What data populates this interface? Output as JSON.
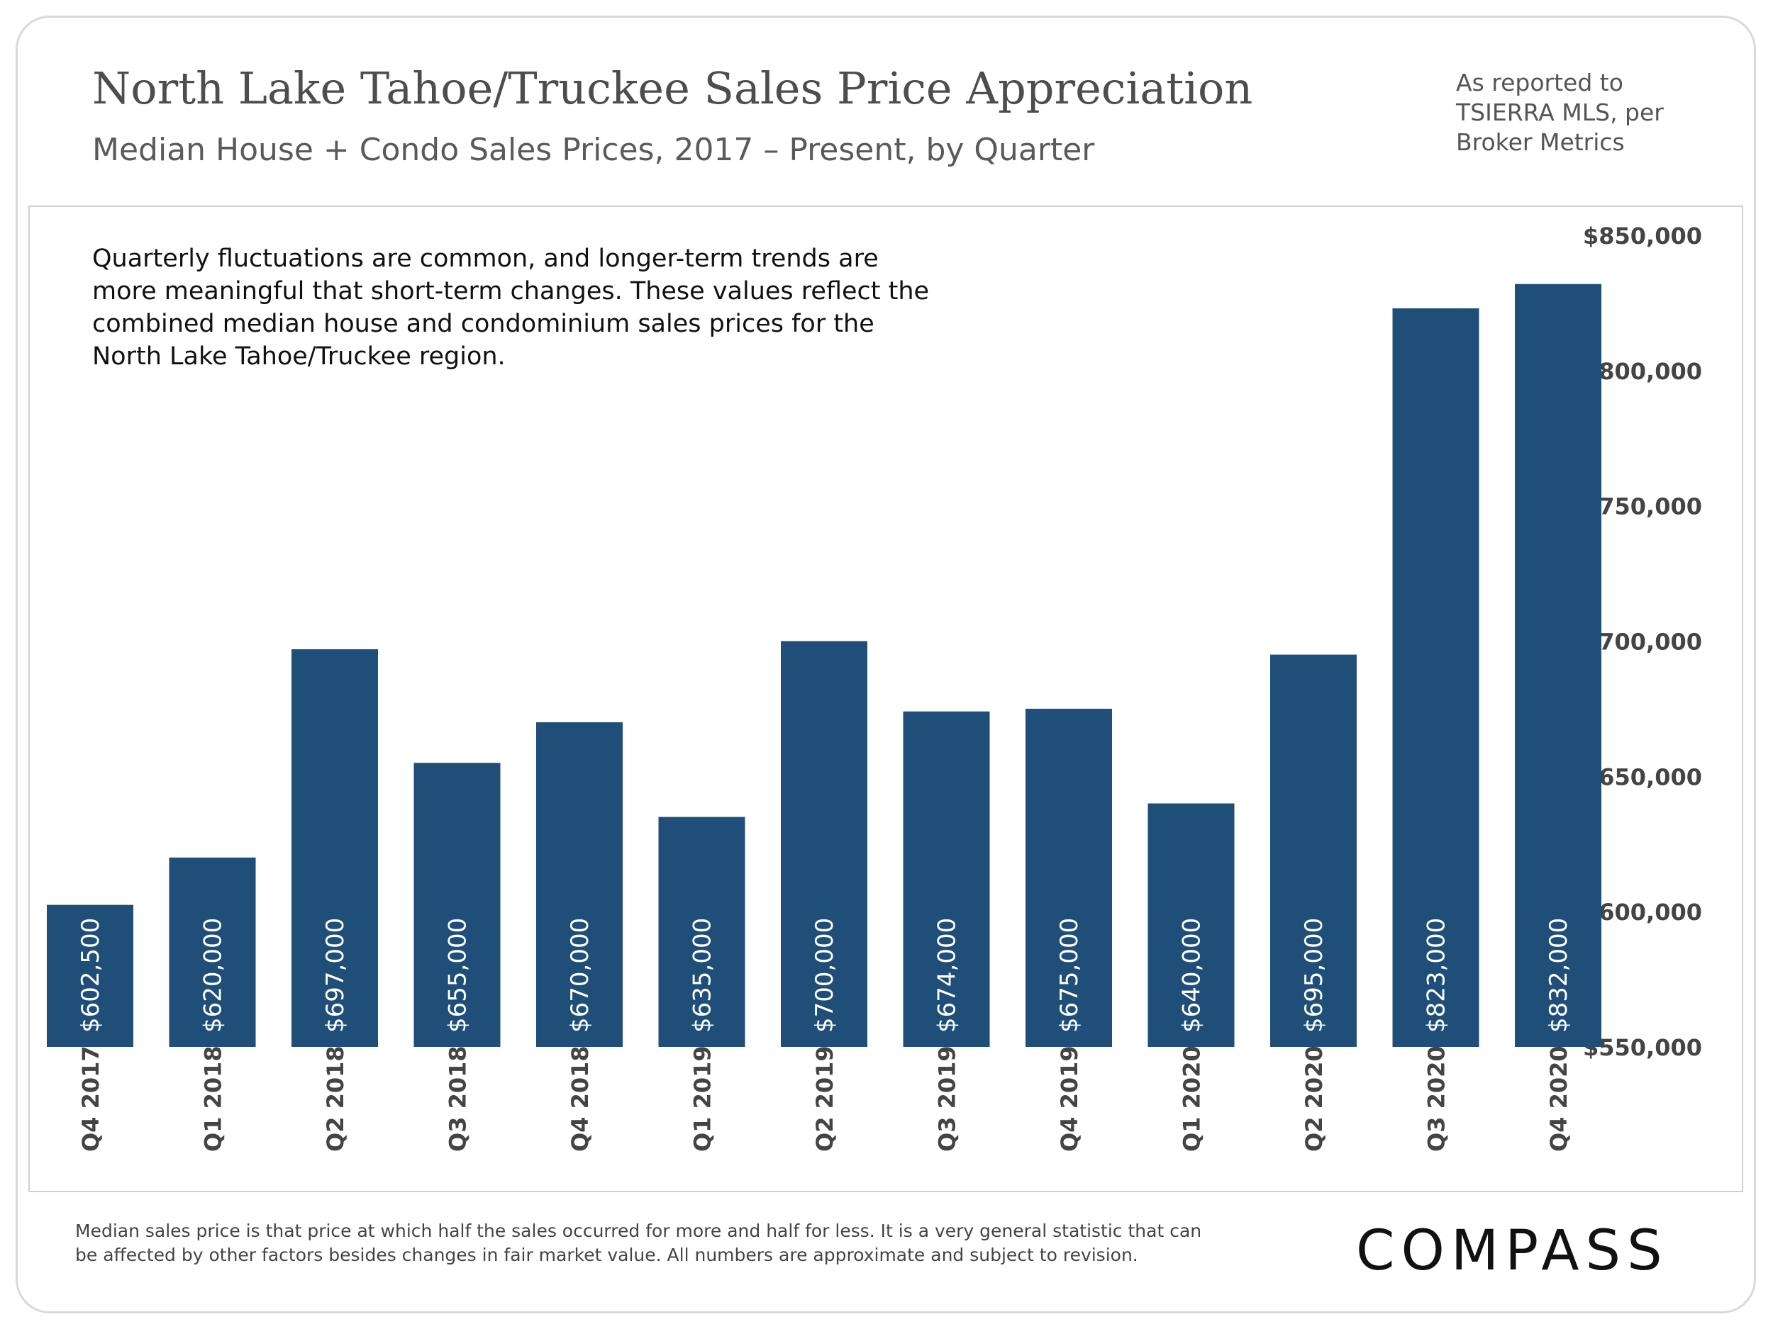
{
  "header": {
    "title": "North Lake Tahoe/Truckee Sales Price Appreciation",
    "subtitle": "Median House + Condo Sales Prices, 2017 – Present, by Quarter",
    "source_lines": [
      "As reported to",
      "TSIERRA MLS, per",
      "Broker Metrics"
    ]
  },
  "note_lines": [
    "Quarterly fluctuations are common, and longer-term trends are",
    "more meaningful that short-term changes. These values reflect the",
    "combined median house and condominium sales prices for the",
    "North Lake Tahoe/Truckee region."
  ],
  "footnote_lines": [
    "Median sales price is that price at which half the sales occurred for more and half for less. It is a very general statistic that can",
    "be affected by other factors besides changes in fair market value. All numbers are approximate and subject to revision."
  ],
  "logo": "COMPASS",
  "colors": {
    "bar": "#1f4e79",
    "bar_label": "#ffffff",
    "axis_text": "#444444"
  },
  "chart_data": {
    "type": "bar",
    "categories": [
      "Q4 2017",
      "Q1 2018",
      "Q2 2018",
      "Q3 2018",
      "Q4 2018",
      "Q1 2019",
      "Q2 2019",
      "Q3 2019",
      "Q4 2019",
      "Q1 2020",
      "Q2 2020",
      "Q3 2020",
      "Q4 2020"
    ],
    "values": [
      602500,
      620000,
      697000,
      655000,
      670000,
      635000,
      700000,
      674000,
      675000,
      640000,
      695000,
      823000,
      832000
    ],
    "value_labels": [
      "$602,500",
      "$620,000",
      "$697,000",
      "$655,000",
      "$670,000",
      "$635,000",
      "$700,000",
      "$674,000",
      "$675,000",
      "$640,000",
      "$695,000",
      "$823,000",
      "$832,000"
    ],
    "ylim": [
      550000,
      850000
    ],
    "yticks": [
      550000,
      600000,
      650000,
      700000,
      750000,
      800000,
      850000
    ],
    "ytick_labels": [
      "$550,000",
      "$600,000",
      "$650,000",
      "$700,000",
      "$750,000",
      "$800,000",
      "$850,000"
    ],
    "y_axis_side": "right",
    "grid": false
  }
}
